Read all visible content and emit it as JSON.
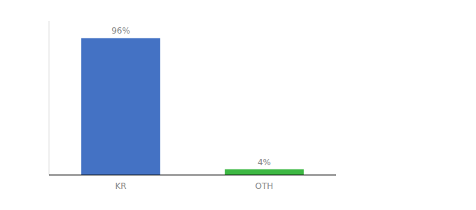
{
  "chart_data": {
    "type": "bar",
    "categories": [
      "KR",
      "OTH"
    ],
    "values": [
      96,
      4
    ],
    "value_labels": [
      "96%",
      "4%"
    ],
    "colors": [
      "#4472c4",
      "#3db843"
    ],
    "ylim": [
      0,
      108
    ],
    "data_labels": true,
    "tick_labels": "x",
    "grid": false
  }
}
